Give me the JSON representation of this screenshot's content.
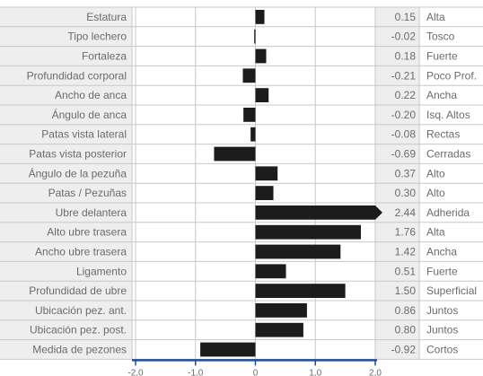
{
  "chart_data": {
    "type": "bar",
    "orientation": "horizontal",
    "categories": [
      "Estatura",
      "Tipo lechero",
      "Fortaleza",
      "Profundidad corporal",
      "Ancho de anca",
      "Ángulo de anca",
      "Patas vista lateral",
      "Patas vista posterior",
      "Ángulo de la pezuña",
      "Patas / Pezuñas",
      "Ubre delantera",
      "Alto ubre trasera",
      "Ancho ubre trasera",
      "Ligamento",
      "Profundidad de ubre",
      "Ubicación pez. ant.",
      "Ubicación pez. post.",
      "Medida de pezones"
    ],
    "values": [
      0.15,
      -0.02,
      0.18,
      -0.21,
      0.22,
      -0.2,
      -0.08,
      -0.69,
      0.37,
      0.3,
      2.44,
      1.76,
      1.42,
      0.51,
      1.5,
      0.86,
      0.8,
      -0.92
    ],
    "value_labels": [
      "0.15",
      "-0.02",
      "0.18",
      "-0.21",
      "0.22",
      "-0.20",
      "-0.08",
      "-0.69",
      "0.37",
      "0.30",
      "2.44",
      "1.76",
      "1.42",
      "0.51",
      "1.50",
      "0.86",
      "0.80",
      "-0.92"
    ],
    "descriptors": [
      "Alta",
      "Tosco",
      "Fuerte",
      "Poco Prof.",
      "Ancha",
      "Isq. Altos",
      "Rectas",
      "Cerradas",
      "Alto",
      "Alto",
      "Adherida",
      "Alta",
      "Ancha",
      "Fuerte",
      "Superficial",
      "Juntos",
      "Juntos",
      "Cortos"
    ],
    "x_ticks": [
      "-2,0",
      "-1,0",
      "0",
      "1,0",
      "2,0"
    ],
    "x_tick_values": [
      -2,
      -1,
      0,
      1,
      2
    ],
    "xlim": [
      -2,
      2
    ],
    "grid": true,
    "clipped_arrow_index": 10
  },
  "colors": {
    "bar": "#1c1c1c",
    "grid": "#c8c8c8",
    "label_bg": "#eeeeee",
    "axis": "#1f4e9a",
    "text": "#6b6b6b"
  }
}
